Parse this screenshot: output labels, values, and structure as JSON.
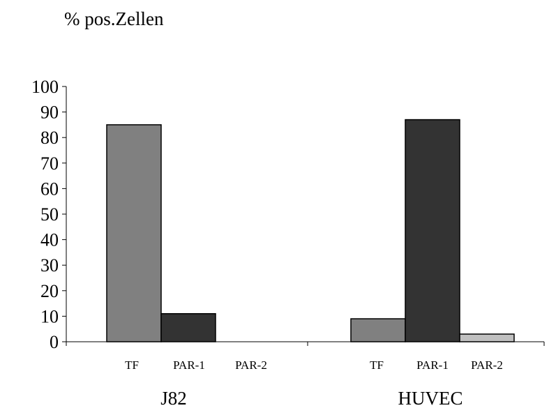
{
  "chart_data": {
    "type": "bar",
    "title": "",
    "ylabel": "% pos.Zellen",
    "xlabel": "",
    "ylim": [
      0,
      100
    ],
    "yticks": [
      0,
      10,
      20,
      30,
      40,
      50,
      60,
      70,
      80,
      90,
      100
    ],
    "grid": false,
    "legend": "none",
    "groups": [
      {
        "name": "J82",
        "bars": [
          {
            "label": "TF",
            "value": 85,
            "color": "#808080"
          },
          {
            "label": "PAR-1",
            "value": 11,
            "color": "#333333"
          },
          {
            "label": "PAR-2",
            "value": 0,
            "color": "#c0c0c0"
          }
        ]
      },
      {
        "name": "HUVEC",
        "bars": [
          {
            "label": "TF",
            "value": 9,
            "color": "#808080"
          },
          {
            "label": "PAR-1",
            "value": 87,
            "color": "#333333"
          },
          {
            "label": "PAR-2",
            "value": 3,
            "color": "#c0c0c0"
          }
        ]
      }
    ]
  }
}
